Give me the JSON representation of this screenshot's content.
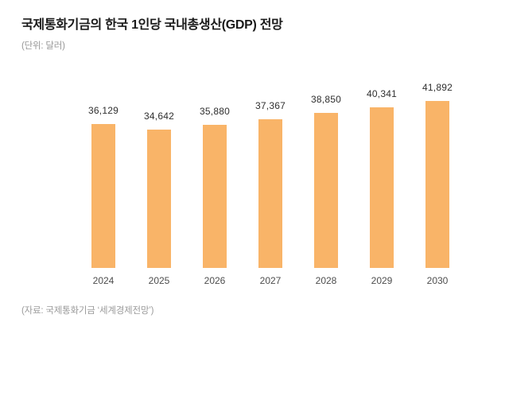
{
  "header": {
    "title": "국제통화기금의 한국 1인당 국내총생산(GDP) 전망",
    "unit": "(단위: 달러)"
  },
  "footer": {
    "source": "(자료: 국제통화기금 ‘세계경제전망’)"
  },
  "colors": {
    "bar": "#F9B468",
    "title_text": "#1a1a1a",
    "unit_text": "#979797",
    "value_label_text": "#2f2f2f",
    "tick_label_text": "#4d4d4d",
    "source_text": "#9b9b9b",
    "background": "#ffffff"
  },
  "chart_data": {
    "type": "bar",
    "title": "국제통화기금의 한국 1인당 국내총생산(GDP) 전망",
    "subtitle": "(단위: 달러)",
    "categories": [
      "2024",
      "2025",
      "2026",
      "2027",
      "2028",
      "2029",
      "2030"
    ],
    "values": [
      36129,
      34642,
      35880,
      37367,
      38850,
      40341,
      41892
    ],
    "value_labels": [
      "36,129",
      "34,642",
      "35,880",
      "37,367",
      "38,850",
      "40,341",
      "41,892"
    ],
    "xlabel": "",
    "ylabel": "",
    "ylim": [
      0,
      41892
    ],
    "grid": false,
    "legend": "none",
    "axis_lines": "none",
    "bar_color": "#F9B468",
    "source": "(자료: 국제통화기금 ‘세계경제전망’)"
  }
}
